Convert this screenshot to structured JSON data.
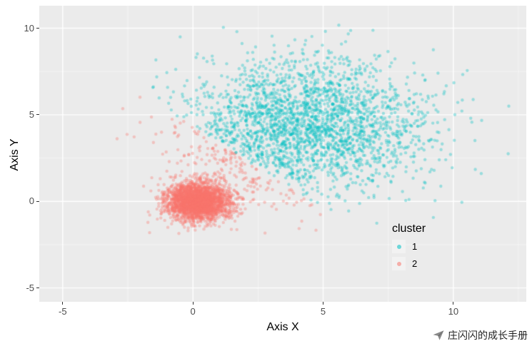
{
  "chart_data": {
    "type": "scatter",
    "title": "",
    "xlabel": "Axis X",
    "ylabel": "Axis Y",
    "xlim": [
      -5.9,
      12.8
    ],
    "ylim": [
      -5.8,
      11.3
    ],
    "x_ticks": [
      -5,
      0,
      5,
      10
    ],
    "y_ticks": [
      -5,
      0,
      5,
      10
    ],
    "grid": "on",
    "legend_position": "inside-right",
    "legend": {
      "title": "cluster",
      "entries": [
        {
          "label": "1",
          "color": "#00BFC4"
        },
        {
          "label": "2",
          "color": "#F8766D"
        }
      ]
    },
    "point": {
      "radius": 2.2,
      "alpha": 0.35
    },
    "generator": {
      "note": "two gaussian clouds assigned to clusters by nearest centroid (k-means style boundary)",
      "seed": 42,
      "clouds": [
        {
          "n": 2600,
          "mean": [
            4.3,
            4.4
          ],
          "sd": [
            2.3,
            1.9
          ]
        },
        {
          "n": 2500,
          "mean": [
            0.2,
            0.0
          ],
          "sd": [
            0.62,
            0.56
          ]
        }
      ],
      "assign_centroids": [
        [
          4.3,
          4.4
        ],
        [
          0.2,
          0.0
        ]
      ]
    }
  },
  "colors": {
    "panel_background": "#EBEBEB",
    "grid_major": "#FFFFFF",
    "grid_minor": "rgba(255,255,255,0.55)",
    "tick_text": "#4D4D4D",
    "axis_title": "#000000",
    "legend_key_background": "#F2F2F2"
  },
  "watermark": {
    "text": "庄闪闪的成长手册",
    "icon": "paper-plane-icon"
  }
}
